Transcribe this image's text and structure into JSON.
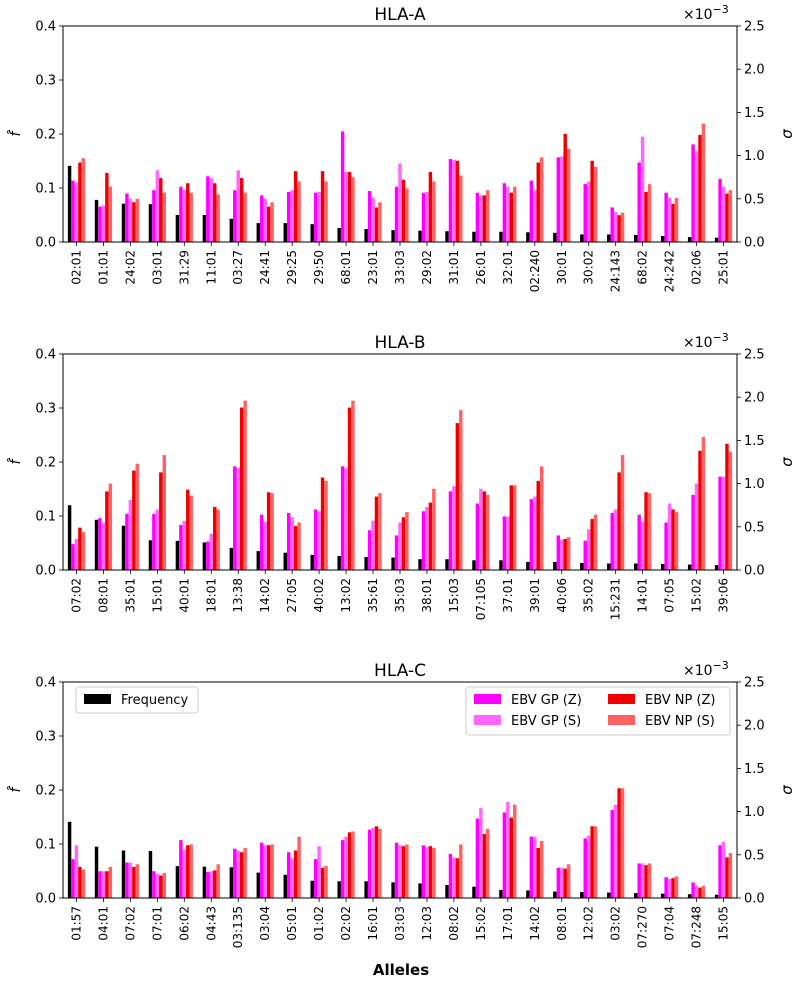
{
  "colors": {
    "frequency": "#000000",
    "gp_z": "#ff00ff",
    "gp_s": "#ff66ff",
    "np_z": "#ee0000",
    "np_s": "#ff6262"
  },
  "legend": {
    "frequency": "Frequency",
    "gp_z": "EBV GP (Z)",
    "gp_s": "EBV GP (S)",
    "np_z": "EBV NP (Z)",
    "np_s": "EBV NP (S)"
  },
  "shared": {
    "left_label": "f̂",
    "right_label": "σ",
    "sigma_exponent_base": "×10",
    "sigma_exponent_power": "−3",
    "xlabel": "Alleles",
    "left_ticks": [
      "0.0",
      "0.1",
      "0.2",
      "0.3",
      "0.4"
    ],
    "right_ticks": [
      "0.0",
      "0.5",
      "1.0",
      "1.5",
      "2.0",
      "2.5"
    ]
  },
  "chart_data": [
    {
      "type": "bar",
      "title": "HLA-A",
      "ylim_left": [
        0,
        0.4
      ],
      "ylim_right": [
        0,
        2.5
      ],
      "categories": [
        "02:01",
        "01:01",
        "24:02",
        "03:01",
        "31:29",
        "11:01",
        "03:27",
        "24:41",
        "29:25",
        "29:50",
        "68:01",
        "23:01",
        "33:03",
        "29:02",
        "31:01",
        "26:01",
        "32:01",
        "02:240",
        "30:01",
        "30:02",
        "24:143",
        "68:02",
        "24:242",
        "02:06",
        "25:01"
      ],
      "frequency": [
        0.141,
        0.078,
        0.071,
        0.07,
        0.05,
        0.05,
        0.043,
        0.035,
        0.035,
        0.033,
        0.026,
        0.024,
        0.022,
        0.021,
        0.02,
        0.019,
        0.019,
        0.018,
        0.017,
        0.014,
        0.014,
        0.013,
        0.011,
        0.009,
        0.008
      ],
      "series": [
        {
          "name": "EBV GP (Z)",
          "key": "gp_z",
          "values": [
            0.71,
            0.41,
            0.56,
            0.6,
            0.64,
            0.76,
            0.6,
            0.54,
            0.58,
            0.57,
            1.28,
            0.59,
            0.64,
            0.57,
            0.96,
            0.57,
            0.68,
            0.71,
            0.98,
            0.67,
            0.4,
            0.92,
            0.57,
            1.13,
            0.73
          ]
        },
        {
          "name": "EBV GP (S)",
          "key": "gp_s",
          "values": [
            0.69,
            0.42,
            0.5,
            0.83,
            0.6,
            0.74,
            0.83,
            0.5,
            0.6,
            0.58,
            0.81,
            0.51,
            0.91,
            0.58,
            0.95,
            0.54,
            0.64,
            0.6,
            0.99,
            0.7,
            0.35,
            1.22,
            0.51,
            1.05,
            0.64
          ]
        },
        {
          "name": "EBV NP (Z)",
          "key": "np_z",
          "values": [
            0.92,
            0.8,
            0.46,
            0.74,
            0.68,
            0.68,
            0.74,
            0.41,
            0.82,
            0.82,
            0.81,
            0.4,
            0.72,
            0.81,
            0.94,
            0.54,
            0.57,
            0.92,
            1.25,
            0.94,
            0.31,
            0.58,
            0.44,
            1.24,
            0.56
          ]
        },
        {
          "name": "EBV NP (S)",
          "key": "np_s",
          "values": [
            0.97,
            0.64,
            0.5,
            0.57,
            0.57,
            0.55,
            0.57,
            0.46,
            0.7,
            0.7,
            0.75,
            0.46,
            0.62,
            0.7,
            0.77,
            0.6,
            0.64,
            0.98,
            1.08,
            0.87,
            0.34,
            0.67,
            0.51,
            1.37,
            0.6
          ]
        }
      ]
    },
    {
      "type": "bar",
      "title": "HLA-B",
      "ylim_left": [
        0,
        0.4
      ],
      "ylim_right": [
        0,
        2.5
      ],
      "categories": [
        "07:02",
        "08:01",
        "35:01",
        "15:01",
        "40:01",
        "18:01",
        "13:38",
        "14:02",
        "27:05",
        "40:02",
        "13:02",
        "35:61",
        "35:03",
        "38:01",
        "15:03",
        "07:105",
        "37:01",
        "39:01",
        "40:06",
        "35:02",
        "15:231",
        "14:01",
        "07:05",
        "15:02",
        "39:06"
      ],
      "frequency": [
        0.12,
        0.093,
        0.082,
        0.055,
        0.054,
        0.051,
        0.041,
        0.035,
        0.032,
        0.028,
        0.026,
        0.024,
        0.023,
        0.02,
        0.02,
        0.018,
        0.018,
        0.015,
        0.015,
        0.013,
        0.012,
        0.012,
        0.011,
        0.01,
        0.009
      ],
      "series": [
        {
          "name": "EBV GP (Z)",
          "key": "gp_z",
          "values": [
            0.3,
            0.6,
            0.65,
            0.65,
            0.52,
            0.33,
            1.2,
            0.64,
            0.66,
            0.7,
            1.2,
            0.46,
            0.4,
            0.68,
            0.91,
            0.77,
            0.62,
            0.82,
            0.4,
            0.34,
            0.66,
            0.64,
            0.55,
            0.87,
            1.08
          ]
        },
        {
          "name": "EBV GP (S)",
          "key": "gp_s",
          "values": [
            0.36,
            0.55,
            0.81,
            0.7,
            0.57,
            0.42,
            1.18,
            0.56,
            0.61,
            0.68,
            1.18,
            0.57,
            0.55,
            0.73,
            0.97,
            0.94,
            0.62,
            0.85,
            0.35,
            0.47,
            0.7,
            0.56,
            0.77,
            1.0,
            1.08
          ]
        },
        {
          "name": "EBV NP (Z)",
          "key": "np_z",
          "values": [
            0.49,
            0.91,
            1.15,
            1.13,
            0.93,
            0.73,
            1.88,
            0.9,
            0.51,
            1.07,
            1.88,
            0.85,
            0.61,
            0.78,
            1.7,
            0.91,
            0.98,
            1.03,
            0.36,
            0.59,
            1.13,
            0.9,
            0.7,
            1.38,
            1.46
          ]
        },
        {
          "name": "EBV NP (S)",
          "key": "np_s",
          "values": [
            0.44,
            1.0,
            1.23,
            1.33,
            0.86,
            0.7,
            1.96,
            0.89,
            0.55,
            1.03,
            1.96,
            0.89,
            0.67,
            0.94,
            1.85,
            0.87,
            0.98,
            1.2,
            0.38,
            0.64,
            1.33,
            0.89,
            0.67,
            1.54,
            1.37
          ]
        }
      ]
    },
    {
      "type": "bar",
      "title": "HLA-C",
      "ylim_left": [
        0,
        0.4
      ],
      "ylim_right": [
        0,
        2.5
      ],
      "legend_position": "top-left and top-right",
      "categories": [
        "01:57",
        "04:01",
        "07:02",
        "07:01",
        "06:02",
        "04:43",
        "03:135",
        "03:04",
        "05:01",
        "01:02",
        "02:02",
        "16:01",
        "03:03",
        "12:03",
        "08:02",
        "15:02",
        "17:01",
        "14:02",
        "08:01",
        "12:02",
        "03:02",
        "07:270",
        "07:04",
        "07:248",
        "15:05"
      ],
      "frequency": [
        0.141,
        0.095,
        0.088,
        0.087,
        0.059,
        0.058,
        0.057,
        0.047,
        0.043,
        0.032,
        0.031,
        0.031,
        0.029,
        0.027,
        0.024,
        0.021,
        0.015,
        0.014,
        0.012,
        0.011,
        0.01,
        0.009,
        0.008,
        0.007,
        0.006
      ],
      "series": [
        {
          "name": "EBV GP (Z)",
          "key": "gp_z",
          "values": [
            0.45,
            0.31,
            0.41,
            0.31,
            0.67,
            0.3,
            0.57,
            0.64,
            0.53,
            0.45,
            0.67,
            0.79,
            0.64,
            0.61,
            0.51,
            0.92,
            0.99,
            0.71,
            0.35,
            0.69,
            1.02,
            0.4,
            0.24,
            0.18,
            0.61
          ]
        },
        {
          "name": "EBV GP (S)",
          "key": "gp_s",
          "values": [
            0.61,
            0.31,
            0.41,
            0.28,
            0.56,
            0.31,
            0.55,
            0.61,
            0.46,
            0.6,
            0.71,
            0.81,
            0.61,
            0.59,
            0.47,
            1.04,
            1.11,
            0.71,
            0.35,
            0.72,
            1.08,
            0.4,
            0.22,
            0.14,
            0.65
          ]
        },
        {
          "name": "EBV NP (Z)",
          "key": "np_z",
          "values": [
            0.36,
            0.31,
            0.36,
            0.26,
            0.61,
            0.32,
            0.53,
            0.61,
            0.55,
            0.35,
            0.76,
            0.83,
            0.6,
            0.6,
            0.46,
            0.74,
            0.93,
            0.58,
            0.34,
            0.83,
            1.27,
            0.38,
            0.23,
            0.12,
            0.47
          ]
        },
        {
          "name": "EBV NP (S)",
          "key": "np_s",
          "values": [
            0.33,
            0.36,
            0.39,
            0.29,
            0.62,
            0.39,
            0.58,
            0.62,
            0.71,
            0.37,
            0.77,
            0.8,
            0.62,
            0.58,
            0.62,
            0.8,
            1.08,
            0.66,
            0.39,
            0.83,
            1.27,
            0.4,
            0.25,
            0.14,
            0.52
          ]
        }
      ]
    }
  ]
}
